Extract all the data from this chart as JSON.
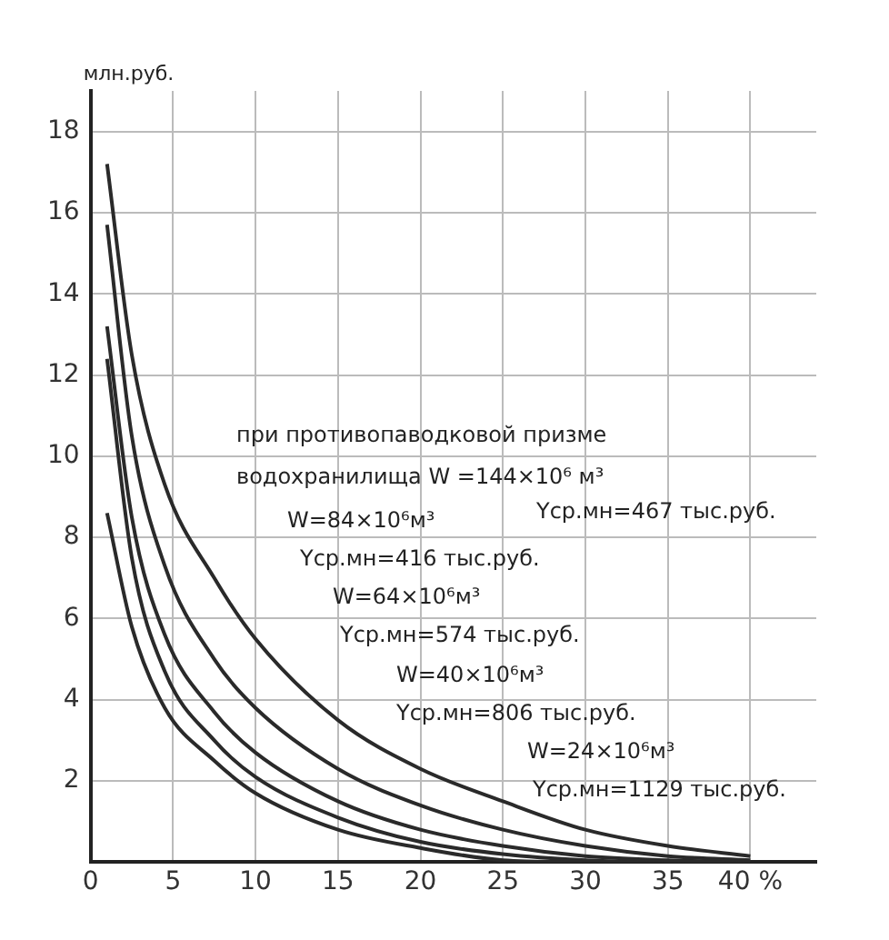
{
  "chart_data": {
    "type": "line",
    "ylabel": "млн.руб.",
    "x": [
      1,
      2.5,
      4.5,
      7.5,
      10,
      15,
      20,
      25,
      30,
      35,
      40
    ],
    "series": [
      {
        "color": "#2a2a2a",
        "values": [
          17.2,
          12.5,
          9.3,
          7.0,
          5.5,
          3.5,
          2.3,
          1.5,
          0.8,
          0.4,
          0.15
        ]
      },
      {
        "color": "#2a2a2a",
        "values": [
          15.7,
          10.5,
          7.3,
          5.0,
          3.8,
          2.3,
          1.4,
          0.8,
          0.4,
          0.15,
          0.05
        ]
      },
      {
        "color": "#2a2a2a",
        "values": [
          13.2,
          8.5,
          5.6,
          3.7,
          2.7,
          1.5,
          0.8,
          0.4,
          0.15,
          0.05,
          0
        ]
      },
      {
        "color": "#2a2a2a",
        "values": [
          12.4,
          7.5,
          4.7,
          3.0,
          2.1,
          1.1,
          0.5,
          0.2,
          0.05,
          0,
          0
        ]
      },
      {
        "color": "#2a2a2a",
        "values": [
          8.6,
          5.8,
          3.8,
          2.5,
          1.7,
          0.8,
          0.35,
          0.05,
          0,
          null,
          null
        ]
      }
    ],
    "xlim": [
      0,
      44
    ],
    "xticks": [
      0,
      5,
      10,
      15,
      20,
      25,
      30,
      35,
      {
        "value": 40,
        "label": "40 %"
      }
    ],
    "ylim": [
      0,
      19
    ],
    "yticks": [
      2,
      4,
      6,
      8,
      10,
      12,
      14,
      16,
      18
    ],
    "grid": true,
    "legend": false,
    "marker": "none",
    "line_style": "solid",
    "annotations": [
      "при противопаводковой призме",
      "водохранилища W =144×10⁶ м³",
      "Yср.мн=467 тыс.руб.",
      "W=84×10⁶м³",
      "Yср.мн=416 тыс.руб.",
      "W=64×10⁶м³",
      "Yср.мн=574 тыс.руб.",
      "W=40×10⁶м³",
      "Yср.мн=806 тыс.руб.",
      "W=24×10⁶м³",
      "Yср.мн=1129 тыс.руб."
    ]
  }
}
